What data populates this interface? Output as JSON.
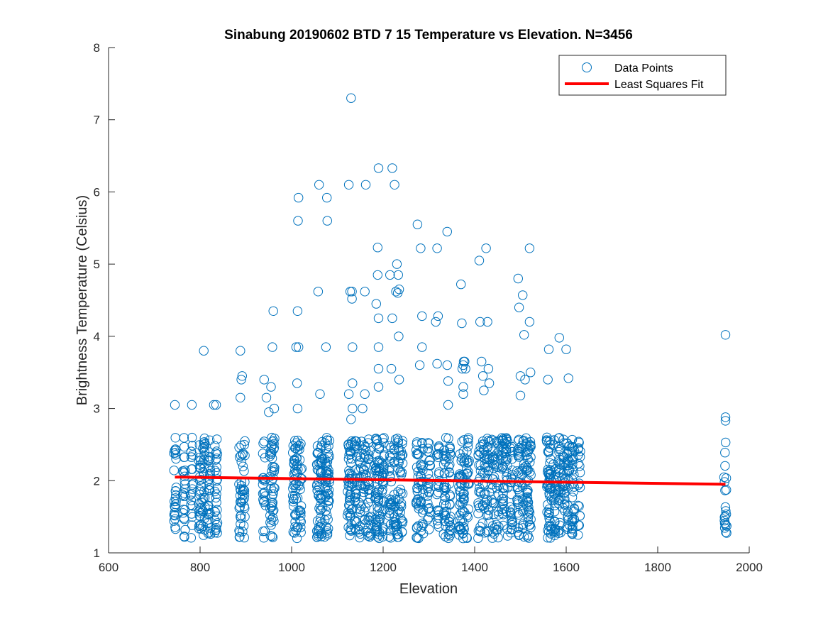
{
  "chart_data": {
    "type": "scatter",
    "title": "Sinabung 20190602 BTD 7 15 Temperature vs Elevation. N=3456",
    "xlabel": "Elevation",
    "ylabel": "Brightness Temperature (Celsius)",
    "xlim": [
      600,
      2000
    ],
    "ylim": [
      1,
      8
    ],
    "xticks": [
      "600",
      "800",
      "1000",
      "1200",
      "1400",
      "1600",
      "1800",
      "2000"
    ],
    "yticks": [
      "1",
      "2",
      "3",
      "4",
      "5",
      "6",
      "7",
      "8"
    ],
    "grid": false,
    "legend_position": "top-right",
    "legend": [
      "Data Points",
      "Least Squares Fit"
    ],
    "colors": {
      "points": "#0072BD",
      "fit": "#FF0000",
      "axes": "#262626"
    },
    "series": [
      {
        "name": "Data Points",
        "type": "scatter",
        "columns": [
          745,
          765,
          782,
          800,
          808,
          820,
          835,
          888,
          895,
          940,
          955,
          960,
          1005,
          1012,
          1020,
          1058,
          1065,
          1075,
          1080,
          1125,
          1130,
          1140,
          1150,
          1160,
          1170,
          1185,
          1190,
          1200,
          1215,
          1225,
          1232,
          1240,
          1275,
          1285,
          1300,
          1320,
          1335,
          1345,
          1368,
          1375,
          1385,
          1410,
          1420,
          1430,
          1440,
          1450,
          1462,
          1470,
          1480,
          1495,
          1505,
          1515,
          1520,
          1560,
          1565,
          1575,
          1585,
          1595,
          1605,
          1615,
          1628,
          1948
        ],
        "column_min": 1.2,
        "column_max": 2.6,
        "outliers": [
          [
            745,
            3.05
          ],
          [
            782,
            3.05
          ],
          [
            808,
            3.8
          ],
          [
            830,
            3.05
          ],
          [
            835,
            3.05
          ],
          [
            888,
            3.8
          ],
          [
            890,
            3.4
          ],
          [
            892,
            3.45
          ],
          [
            888,
            3.15
          ],
          [
            940,
            3.4
          ],
          [
            945,
            3.15
          ],
          [
            950,
            2.95
          ],
          [
            955,
            3.3
          ],
          [
            958,
            3.85
          ],
          [
            960,
            4.35
          ],
          [
            962,
            3.0
          ],
          [
            1010,
            3.85
          ],
          [
            1012,
            3.35
          ],
          [
            1013,
            3.0
          ],
          [
            1013,
            4.35
          ],
          [
            1014,
            5.6
          ],
          [
            1015,
            3.85
          ],
          [
            1015,
            5.92
          ],
          [
            1058,
            4.62
          ],
          [
            1060,
            6.1
          ],
          [
            1062,
            3.2
          ],
          [
            1075,
            3.85
          ],
          [
            1077,
            5.92
          ],
          [
            1078,
            5.6
          ],
          [
            1125,
            6.1
          ],
          [
            1125,
            3.2
          ],
          [
            1128,
            4.62
          ],
          [
            1130,
            7.3
          ],
          [
            1132,
            4.52
          ],
          [
            1132,
            4.62
          ],
          [
            1133,
            3.85
          ],
          [
            1133,
            3.35
          ],
          [
            1133,
            3.0
          ],
          [
            1130,
            2.85
          ],
          [
            1155,
            3.0
          ],
          [
            1160,
            4.62
          ],
          [
            1162,
            6.1
          ],
          [
            1160,
            3.2
          ],
          [
            1185,
            4.45
          ],
          [
            1188,
            5.23
          ],
          [
            1190,
            6.33
          ],
          [
            1188,
            4.85
          ],
          [
            1190,
            3.85
          ],
          [
            1190,
            3.55
          ],
          [
            1190,
            4.25
          ],
          [
            1190,
            3.3
          ],
          [
            1215,
            4.85
          ],
          [
            1218,
            3.55
          ],
          [
            1220,
            6.33
          ],
          [
            1220,
            4.25
          ],
          [
            1225,
            6.1
          ],
          [
            1228,
            4.62
          ],
          [
            1230,
            5.0
          ],
          [
            1232,
            4.6
          ],
          [
            1233,
            4.85
          ],
          [
            1234,
            4.0
          ],
          [
            1235,
            4.65
          ],
          [
            1235,
            3.4
          ],
          [
            1275,
            5.55
          ],
          [
            1280,
            3.6
          ],
          [
            1282,
            5.22
          ],
          [
            1285,
            4.28
          ],
          [
            1285,
            3.85
          ],
          [
            1315,
            4.2
          ],
          [
            1318,
            5.22
          ],
          [
            1320,
            4.28
          ],
          [
            1318,
            3.62
          ],
          [
            1340,
            5.45
          ],
          [
            1340,
            3.6
          ],
          [
            1342,
            3.38
          ],
          [
            1342,
            3.05
          ],
          [
            1370,
            4.72
          ],
          [
            1372,
            4.18
          ],
          [
            1373,
            3.55
          ],
          [
            1375,
            3.6
          ],
          [
            1376,
            3.65
          ],
          [
            1378,
            3.65
          ],
          [
            1380,
            3.55
          ],
          [
            1375,
            3.3
          ],
          [
            1375,
            3.2
          ],
          [
            1410,
            5.05
          ],
          [
            1412,
            4.2
          ],
          [
            1415,
            3.65
          ],
          [
            1418,
            3.45
          ],
          [
            1420,
            3.25
          ],
          [
            1425,
            5.22
          ],
          [
            1428,
            4.2
          ],
          [
            1430,
            3.55
          ],
          [
            1432,
            3.35
          ],
          [
            1495,
            4.8
          ],
          [
            1497,
            4.4
          ],
          [
            1500,
            3.18
          ],
          [
            1500,
            3.45
          ],
          [
            1505,
            4.57
          ],
          [
            1508,
            4.02
          ],
          [
            1510,
            3.4
          ],
          [
            1520,
            5.22
          ],
          [
            1520,
            4.2
          ],
          [
            1522,
            3.5
          ],
          [
            1560,
            3.4
          ],
          [
            1562,
            3.82
          ],
          [
            1585,
            3.98
          ],
          [
            1600,
            3.82
          ],
          [
            1605,
            3.42
          ],
          [
            1948,
            4.02
          ],
          [
            1948,
            2.88
          ],
          [
            1948,
            2.83
          ]
        ]
      },
      {
        "name": "Least Squares Fit",
        "type": "line",
        "x": [
          745,
          1948
        ],
        "y": [
          2.05,
          1.95
        ]
      }
    ]
  }
}
